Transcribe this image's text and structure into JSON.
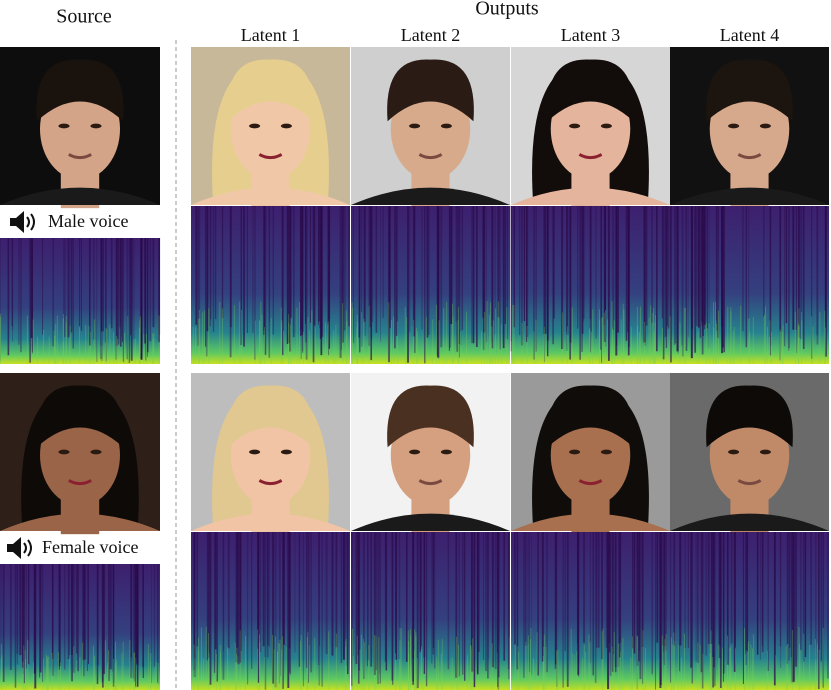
{
  "source_title": "Source",
  "outputs_title": "Outputs",
  "latents": [
    "Latent 1",
    "Latent 2",
    "Latent 3",
    "Latent 4"
  ],
  "rows": [
    {
      "voice_label": "Male voice"
    },
    {
      "voice_label": "Female voice"
    }
  ]
}
